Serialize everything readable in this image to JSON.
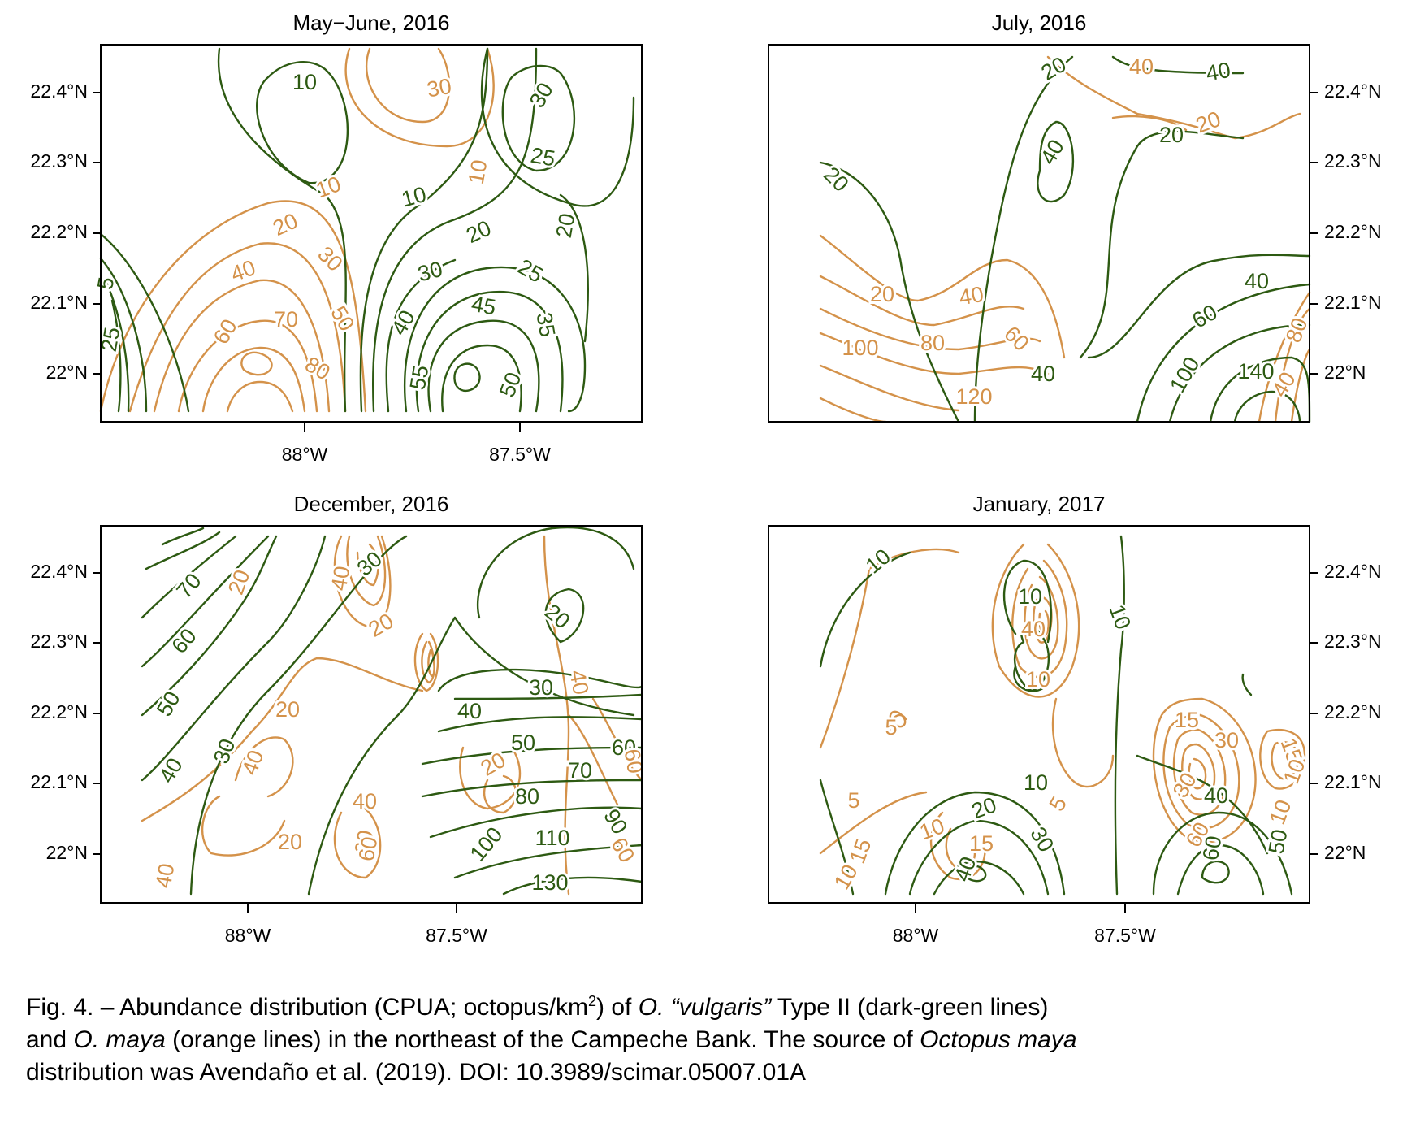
{
  "chart_data": [
    {
      "type": "contour",
      "title": "May−June, 2016",
      "x_ticks": [
        "88°W",
        "87.5°W"
      ],
      "y_ticks": [
        "22°N",
        "22.1°N",
        "22.2°N",
        "22.3°N",
        "22.4°N"
      ],
      "y_axis_side": "left",
      "series": [
        {
          "name": "O. “vulgaris” Type II",
          "color": "#2d5a12",
          "contour_labels": [
            "5",
            "10",
            "20",
            "25",
            "25",
            "30",
            "30",
            "35",
            "40",
            "45",
            "50",
            "55"
          ]
        },
        {
          "name": "O. maya",
          "color": "#d4924a",
          "contour_labels": [
            "10",
            "10",
            "20",
            "30",
            "30",
            "40",
            "50",
            "60",
            "70",
            "80"
          ]
        }
      ]
    },
    {
      "type": "contour",
      "title": "July, 2016",
      "x_ticks": [],
      "y_ticks": [
        "22°N",
        "22.1°N",
        "22.2°N",
        "22.3°N",
        "22.4°N"
      ],
      "y_axis_side": "right",
      "series": [
        {
          "name": "O. “vulgaris” Type II",
          "color": "#2d5a12",
          "contour_labels": [
            "20",
            "20",
            "20",
            "40",
            "40",
            "40",
            "40",
            "60",
            "100",
            "140"
          ]
        },
        {
          "name": "O. maya",
          "color": "#d4924a",
          "contour_labels": [
            "20",
            "20",
            "40",
            "40",
            "40",
            "60",
            "80",
            "80",
            "100",
            "120"
          ]
        }
      ]
    },
    {
      "type": "contour",
      "title": "December, 2016",
      "x_ticks": [
        "88°W",
        "87.5°W"
      ],
      "y_ticks": [
        "22°N",
        "22.1°N",
        "22.2°N",
        "22.3°N",
        "22.4°N"
      ],
      "y_axis_side": "left",
      "series": [
        {
          "name": "O. “vulgaris” Type II",
          "color": "#2d5a12",
          "contour_labels": [
            "20",
            "30",
            "30",
            "30",
            "40",
            "40",
            "50",
            "50",
            "60",
            "60",
            "70",
            "70",
            "80",
            "90",
            "100",
            "110",
            "130"
          ]
        },
        {
          "name": "O. maya",
          "color": "#d4924a",
          "contour_labels": [
            "20",
            "20",
            "20",
            "20",
            "20",
            "40",
            "40",
            "40",
            "40",
            "60",
            "60",
            "60"
          ]
        }
      ]
    },
    {
      "type": "contour",
      "title": "January, 2017",
      "x_ticks": [
        "88°W",
        "87.5°W"
      ],
      "y_ticks": [
        "22°N",
        "22.1°N",
        "22.2°N",
        "22.3°N",
        "22.4°N"
      ],
      "y_axis_side": "right",
      "series": [
        {
          "name": "O. “vulgaris” Type II",
          "color": "#2d5a12",
          "contour_labels": [
            "10",
            "10",
            "10",
            "10",
            "20",
            "30",
            "40",
            "40",
            "50",
            "60"
          ]
        },
        {
          "name": "O. maya",
          "color": "#d4924a",
          "contour_labels": [
            "5",
            "5",
            "10",
            "10",
            "10",
            "15",
            "15",
            "15",
            "30",
            "40",
            "50"
          ]
        }
      ]
    }
  ],
  "caption": {
    "line1_a": "Fig. 4. – Abundance distribution (CPUA; octopus/km",
    "line1_sup": "2",
    "line1_b": ") of ",
    "line1_i1": "O. “vulgaris”",
    "line1_c": " Type II (dark-green lines)",
    "line2_a": "and ",
    "line2_i": "O. maya",
    "line2_b": " (orange lines) in the northeast of the Campeche Bank. The source of ",
    "line2_i2": "Octopus maya",
    "line3": "distribution was Avendaño et al. (2019). DOI: 10.3989/scimar.05007.01A"
  }
}
